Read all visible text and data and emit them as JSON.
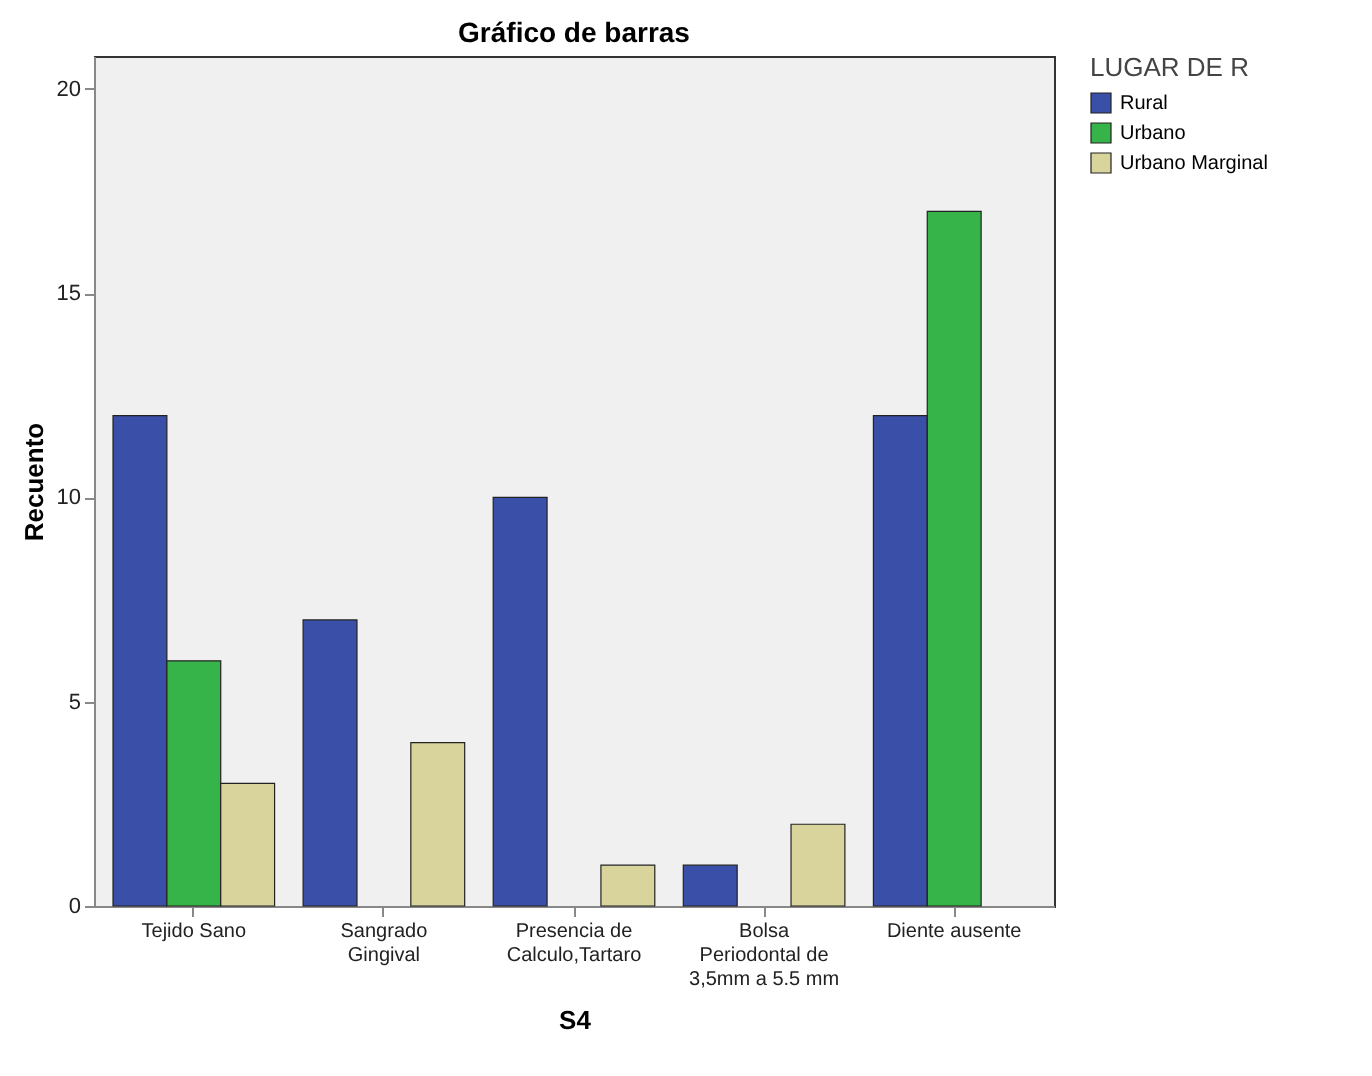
{
  "chart_data": {
    "type": "bar",
    "title": "Gráfico de barras",
    "xlabel": "S4",
    "ylabel": "Recuento",
    "legend_title": "LUGAR DE R",
    "categories": [
      "Tejido Sano",
      "Sangrado Gingival",
      "Presencia de Calculo,Tartaro",
      "Bolsa Periodontal de 3,5mm a 5.5 mm",
      "Diente ausente"
    ],
    "series": [
      {
        "name": "Rural",
        "color": "#3a4fa8",
        "values": [
          12,
          7,
          10,
          1,
          12
        ]
      },
      {
        "name": "Urbano",
        "color": "#36b449",
        "values": [
          6,
          null,
          null,
          null,
          17
        ]
      },
      {
        "name": "Urbano Marginal",
        "color": "#d9d49c",
        "values": [
          3,
          4,
          1,
          2,
          null
        ]
      }
    ],
    "ylim": [
      0,
      20.8
    ],
    "yticks": [
      0,
      5,
      10,
      15,
      20
    ],
    "grid": false,
    "legend": "top right"
  }
}
